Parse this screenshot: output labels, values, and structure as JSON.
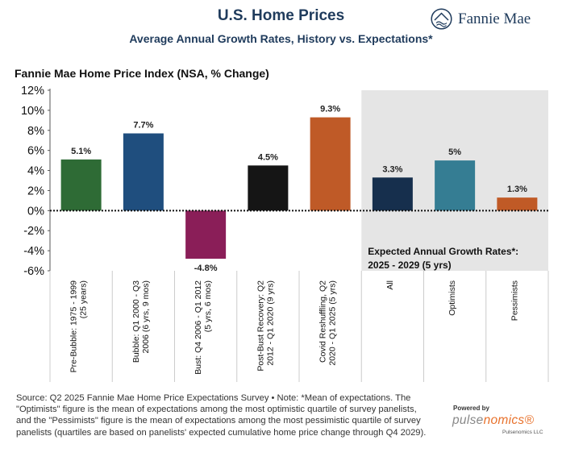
{
  "header": {
    "title": "U.S. Home Prices",
    "subtitle": "Average Annual Growth Rates, History vs. Expectations*",
    "brand": "Fannie Mae",
    "brand_icon": "fannie-mae-house-logo-icon"
  },
  "chart_data": {
    "type": "bar",
    "title": "Fannie Mae Home Price Index (NSA, % Change)",
    "categories": [
      [
        "Pre-Bubble: 1975 - 1999",
        "(25 years)"
      ],
      [
        "Bubble: Q1 2000 - Q3",
        "2006 (6 yrs, 9 mos)"
      ],
      [
        "Bust: Q4 2006 - Q1 2012",
        "(5 yrs, 6 mos)"
      ],
      [
        "Post-Bust Recovery: Q2",
        "2012 - Q1 2020 (9 yrs)"
      ],
      [
        "Covid Reshuffling, Q2",
        "2020 - Q1 2025 (5 yrs)"
      ],
      [
        "All"
      ],
      [
        "Optimists"
      ],
      [
        "Pessimists"
      ]
    ],
    "values": [
      5.1,
      7.7,
      -4.8,
      4.5,
      9.3,
      3.3,
      5,
      1.3
    ],
    "data_labels": [
      "5.1%",
      "7.7%",
      "-4.8%",
      "4.5%",
      "9.3%",
      "3.3%",
      "5%",
      "1.3%"
    ],
    "colors": [
      "#2e6b35",
      "#1f4e7e",
      "#8a1e58",
      "#151515",
      "#bf5a27",
      "#162f4d",
      "#357d93",
      "#c05a26"
    ],
    "ylim": [
      -6,
      12
    ],
    "yticks": [
      12,
      10,
      8,
      6,
      4,
      2,
      0,
      -2,
      -4,
      -6
    ],
    "ytick_labels": [
      "12%",
      "10%",
      "8%",
      "6%",
      "4%",
      "2%",
      "0%",
      "-2%",
      "-4%",
      "-6%"
    ],
    "zero_line": "dotted",
    "shaded_region": {
      "categories": [
        "All",
        "Optimists",
        "Pessimists"
      ],
      "label_lines": [
        "Expected Annual Growth Rates*:",
        "2025 - 2029 (5 yrs)"
      ],
      "color": "#e5e5e5"
    }
  },
  "footer": {
    "source_note": "Source: Q2 2025 Fannie Mae Home Price Expectations Survey • Note: *Mean of expectations. The \"Optimists\" figure is the mean of expectations among the most optimistic quartile of survey panelists, and the \"Pessimists\" figure is the mean of expectations among the most pessimistic quartile of survey panelists (quartiles are based on panelists' expected cumulative home price change through Q4 2029).",
    "powered_by": "Powered by",
    "pulse_part1": "pulse",
    "pulse_part2": "nomics®",
    "pulse_llc": "Pulsenomics LLC"
  }
}
